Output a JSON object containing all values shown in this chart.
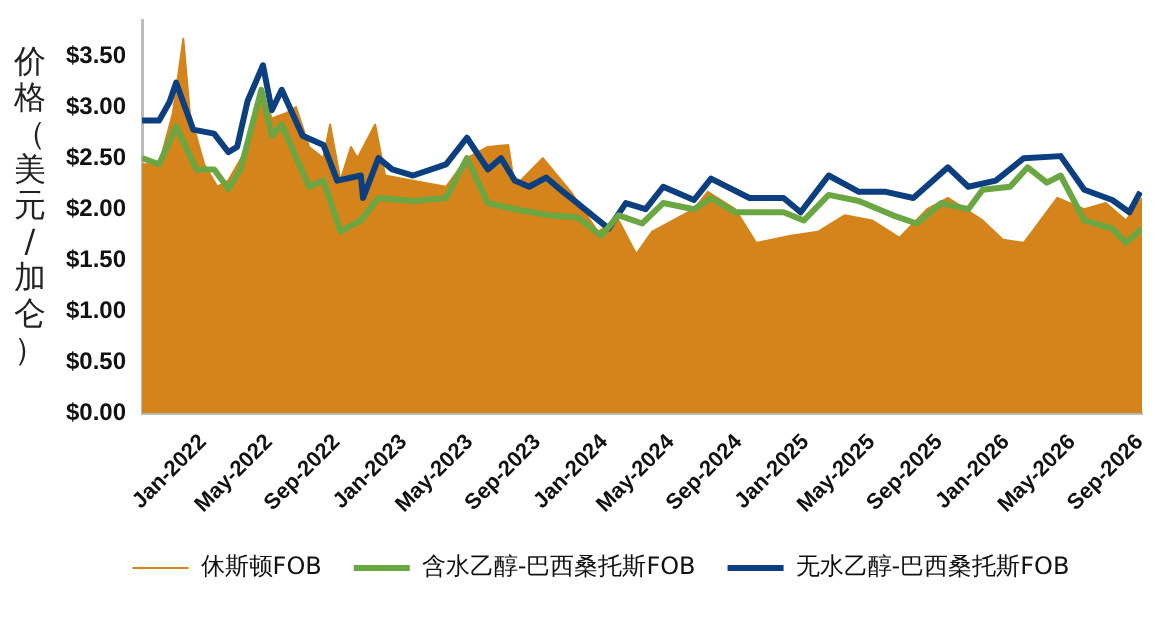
{
  "chart_data": {
    "type": "line",
    "ylabel": "价格（美元/加仑）",
    "xlim": [
      "2021-09-12",
      "2026-09-05"
    ],
    "xticks": [
      {
        "value": "2022-01-01",
        "label": "Jan-2022"
      },
      {
        "value": "2022-05-01",
        "label": "May-2022"
      },
      {
        "value": "2022-09-01",
        "label": "Sep-2022"
      },
      {
        "value": "2023-01-01",
        "label": "Jan-2023"
      },
      {
        "value": "2023-05-01",
        "label": "May-2023"
      },
      {
        "value": "2023-09-01",
        "label": "Sep-2023"
      },
      {
        "value": "2024-01-01",
        "label": "Jan-2024"
      },
      {
        "value": "2024-05-01",
        "label": "May-2024"
      },
      {
        "value": "2024-09-01",
        "label": "Sep-2024"
      },
      {
        "value": "2025-01-01",
        "label": "Jan-2025"
      },
      {
        "value": "2025-05-01",
        "label": "May-2025"
      },
      {
        "value": "2025-09-01",
        "label": "Sep-2025"
      },
      {
        "value": "2026-01-01",
        "label": "Jan-2026"
      },
      {
        "value": "2026-05-01",
        "label": "May-2026"
      },
      {
        "value": "2026-09-01",
        "label": "Sep-2026"
      }
    ],
    "ylim": [
      0,
      3.85
    ],
    "yticks": [
      {
        "value": 0,
        "label": "$0.00"
      },
      {
        "value": 0.5,
        "label": "$0.50"
      },
      {
        "value": 1,
        "label": "$1.00"
      },
      {
        "value": 1.5,
        "label": "$1.50"
      },
      {
        "value": 2,
        "label": "$2.00"
      },
      {
        "value": 2.5,
        "label": "$2.50"
      },
      {
        "value": 3,
        "label": "$3.00"
      },
      {
        "value": 3.5,
        "label": "$3.50"
      }
    ],
    "grid": false,
    "legend": "bottom",
    "series": [
      {
        "name": "休斯顿FOB",
        "type": "area",
        "color": "#d4841a",
        "x": [
          "2021-09-12",
          "2021-10-13",
          "2021-11-07",
          "2021-11-26",
          "2021-12-08",
          "2022-01-03",
          "2022-01-27",
          "2022-02-16",
          "2022-03-23",
          "2022-04-17",
          "2022-05-06",
          "2022-06-01",
          "2022-06-19",
          "2022-07-13",
          "2022-08-08",
          "2022-08-20",
          "2022-09-08",
          "2022-09-27",
          "2022-10-09",
          "2022-11-10",
          "2022-11-28",
          "2023-01-18",
          "2023-03-19",
          "2023-04-26",
          "2023-06-03",
          "2023-07-10",
          "2023-07-22",
          "2023-09-11",
          "2023-11-01",
          "2023-12-20",
          "2024-01-27",
          "2024-02-28",
          "2024-03-28",
          "2024-06-12",
          "2024-07-07",
          "2024-08-26",
          "2024-10-03",
          "2024-12-05",
          "2025-01-24",
          "2025-03-13",
          "2025-05-02",
          "2025-06-21",
          "2025-08-10",
          "2025-09-17",
          "2025-11-19",
          "2025-12-26",
          "2026-02-02",
          "2026-04-04",
          "2026-05-23",
          "2026-07-01",
          "2026-08-07",
          "2026-09-05"
        ],
        "values": [
          2.44,
          2.44,
          2.94,
          3.67,
          2.94,
          2.44,
          2.22,
          2.28,
          2.61,
          3.17,
          2.89,
          2.94,
          3.0,
          2.61,
          2.5,
          2.83,
          2.28,
          2.61,
          2.5,
          2.83,
          2.33,
          2.28,
          2.22,
          2.5,
          2.61,
          2.63,
          2.22,
          2.5,
          2.17,
          1.78,
          1.89,
          1.56,
          1.78,
          2.0,
          2.17,
          2.0,
          1.67,
          1.74,
          1.78,
          1.94,
          1.89,
          1.72,
          2.0,
          2.11,
          1.89,
          1.7,
          1.67,
          2.11,
          2.0,
          2.06,
          1.89,
          2.11
        ]
      },
      {
        "name": "含水乙醇-巴西桑托斯FOB",
        "type": "line",
        "color": "#6aa641",
        "x": [
          "2021-09-12",
          "2021-10-13",
          "2021-11-13",
          "2021-12-20",
          "2022-01-21",
          "2022-02-16",
          "2022-03-10",
          "2022-04-17",
          "2022-05-06",
          "2022-05-24",
          "2022-07-13",
          "2022-08-08",
          "2022-09-08",
          "2022-10-15",
          "2022-11-16",
          "2023-01-18",
          "2023-03-19",
          "2023-04-26",
          "2023-06-03",
          "2023-07-22",
          "2023-09-23",
          "2023-11-13",
          "2023-12-26",
          "2024-01-27",
          "2024-03-10",
          "2024-04-17",
          "2024-06-12",
          "2024-07-13",
          "2024-08-26",
          "2024-11-22",
          "2024-12-29",
          "2025-02-12",
          "2025-04-08",
          "2025-06-09",
          "2025-07-22",
          "2025-09-05",
          "2025-10-24",
          "2025-11-19",
          "2026-01-08",
          "2026-02-09",
          "2026-03-16",
          "2026-04-10",
          "2026-05-23",
          "2026-07-13",
          "2026-08-07",
          "2026-09-05"
        ],
        "values": [
          2.5,
          2.44,
          2.81,
          2.39,
          2.39,
          2.2,
          2.39,
          3.17,
          2.72,
          2.83,
          2.22,
          2.28,
          1.78,
          1.89,
          2.11,
          2.08,
          2.11,
          2.5,
          2.06,
          2.0,
          1.94,
          1.92,
          1.74,
          1.94,
          1.86,
          2.06,
          2.0,
          2.11,
          1.97,
          1.97,
          1.89,
          2.14,
          2.08,
          1.94,
          1.86,
          2.06,
          2.0,
          2.19,
          2.22,
          2.41,
          2.26,
          2.33,
          1.89,
          1.81,
          1.67,
          1.81
        ]
      },
      {
        "name": "无水乙醇-巴西桑托斯FOB",
        "type": "line",
        "color": "#0b3f7f",
        "x": [
          "2021-09-12",
          "2021-10-13",
          "2021-11-01",
          "2021-11-13",
          "2021-12-14",
          "2022-01-21",
          "2022-02-16",
          "2022-03-04",
          "2022-03-23",
          "2022-04-20",
          "2022-05-06",
          "2022-05-24",
          "2022-07-01",
          "2022-08-08",
          "2022-09-02",
          "2022-10-15",
          "2022-10-19",
          "2022-11-16",
          "2022-12-11",
          "2023-01-18",
          "2023-03-19",
          "2023-04-26",
          "2023-06-03",
          "2023-06-27",
          "2023-07-22",
          "2023-08-17",
          "2023-09-17",
          "2023-10-18",
          "2023-11-01",
          "2024-01-09",
          "2024-02-09",
          "2024-03-16",
          "2024-04-17",
          "2024-06-12",
          "2024-07-13",
          "2024-09-21",
          "2024-11-22",
          "2024-12-23",
          "2025-02-12",
          "2025-04-08",
          "2025-05-27",
          "2025-07-16",
          "2025-09-17",
          "2025-10-24",
          "2025-12-13",
          "2026-02-02",
          "2026-04-10",
          "2026-05-23",
          "2026-07-13",
          "2026-08-13",
          "2026-09-02"
        ],
        "values": [
          2.87,
          2.87,
          3.05,
          3.24,
          2.78,
          2.74,
          2.56,
          2.61,
          3.06,
          3.41,
          2.97,
          3.17,
          2.72,
          2.63,
          2.28,
          2.33,
          2.11,
          2.5,
          2.39,
          2.33,
          2.44,
          2.7,
          2.39,
          2.5,
          2.28,
          2.22,
          2.31,
          2.17,
          2.11,
          1.81,
          2.06,
          2.0,
          2.22,
          2.09,
          2.3,
          2.11,
          2.11,
          1.97,
          2.33,
          2.17,
          2.17,
          2.11,
          2.41,
          2.22,
          2.28,
          2.5,
          2.52,
          2.19,
          2.09,
          1.97,
          2.17
        ]
      }
    ]
  }
}
